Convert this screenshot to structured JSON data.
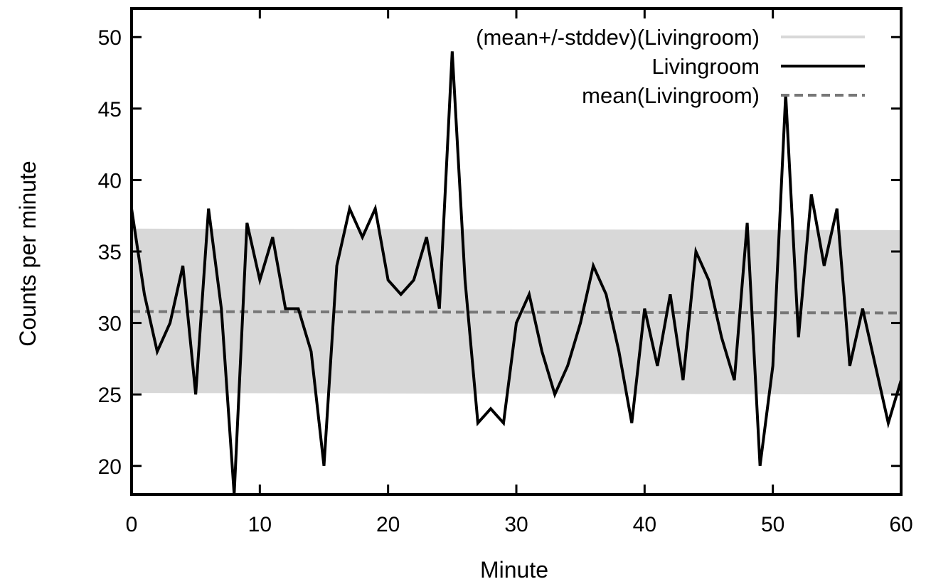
{
  "chart_data": {
    "type": "line",
    "xlabel": "Minute",
    "ylabel": "Counts per minute",
    "xlim": [
      0,
      60
    ],
    "ylim": [
      18,
      52
    ],
    "x_ticks": [
      0,
      10,
      20,
      30,
      40,
      50,
      60
    ],
    "y_ticks": [
      20,
      25,
      30,
      35,
      40,
      45,
      50
    ],
    "grid": false,
    "legend_position": "top-right",
    "colors": {
      "band": "#d8d8d8",
      "line": "#000000",
      "mean": "#777777"
    },
    "series": [
      {
        "name": "(mean+/-stddev)(Livingroom)",
        "kind": "band",
        "x": [
          0,
          60
        ],
        "lower": [
          25.1,
          25.0
        ],
        "upper": [
          36.6,
          36.5
        ]
      },
      {
        "name": "Livingroom",
        "kind": "line",
        "x": [
          0,
          1,
          2,
          3,
          4,
          5,
          6,
          7,
          8,
          9,
          10,
          11,
          12,
          13,
          14,
          15,
          16,
          17,
          18,
          19,
          20,
          21,
          22,
          23,
          24,
          25,
          26,
          27,
          28,
          29,
          30,
          31,
          32,
          33,
          34,
          35,
          36,
          37,
          38,
          39,
          40,
          41,
          42,
          43,
          44,
          45,
          46,
          47,
          48,
          49,
          50,
          51,
          52,
          53,
          54,
          55,
          56,
          57,
          58,
          59,
          60
        ],
        "values": [
          38,
          32,
          28,
          30,
          34,
          25,
          38,
          31,
          18,
          37,
          33,
          36,
          31,
          31,
          28,
          20,
          34,
          38,
          36,
          38,
          33,
          32,
          33,
          36,
          31,
          49,
          33,
          23,
          24,
          23,
          30,
          32,
          28,
          25,
          27,
          30,
          34,
          32,
          28,
          23,
          31,
          27,
          32,
          26,
          35,
          33,
          29,
          26,
          37,
          20,
          27,
          46,
          29,
          39,
          34,
          38,
          27,
          31,
          27,
          23,
          26
        ]
      },
      {
        "name": "mean(Livingroom)",
        "kind": "mean",
        "x": [
          0,
          60
        ],
        "values": [
          30.8,
          30.7
        ]
      }
    ]
  }
}
